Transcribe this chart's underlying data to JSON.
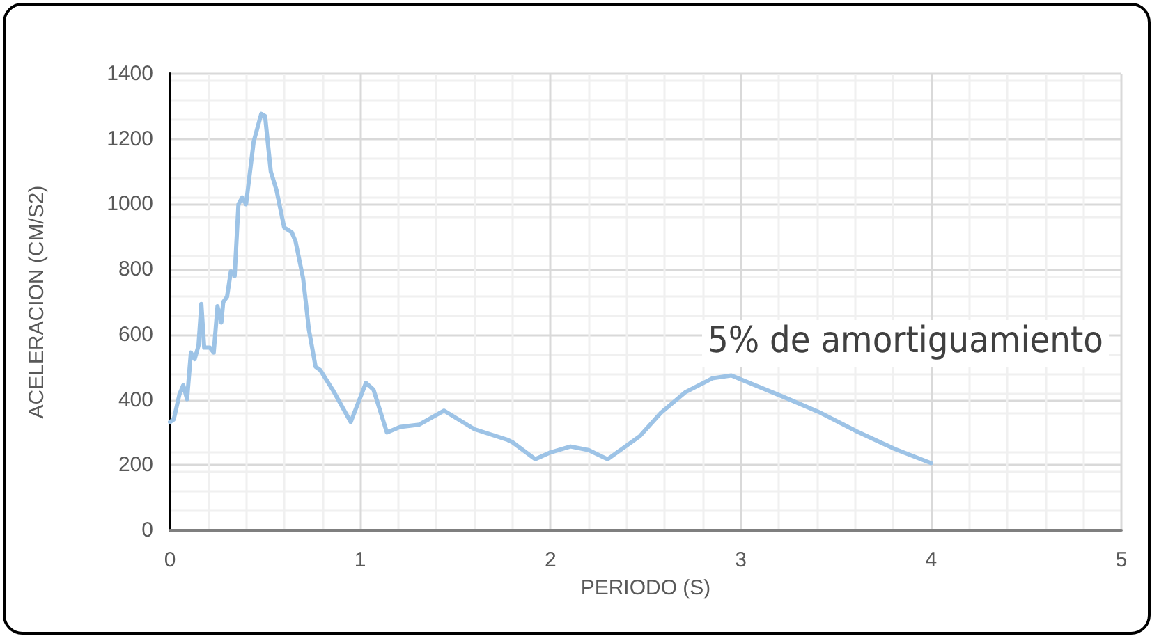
{
  "chart_data": {
    "type": "line",
    "xlabel": "PERIODO (S)",
    "ylabel": "ACELERACION (CM/S2)",
    "annotations": [
      "5% de amortiguamiento"
    ],
    "series": [
      {
        "color": "#9dc3e6",
        "x": [
          0,
          0.02,
          0.05,
          0.07,
          0.09,
          0.11,
          0.13,
          0.15,
          0.165,
          0.18,
          0.21,
          0.23,
          0.25,
          0.27,
          0.28,
          0.3,
          0.32,
          0.34,
          0.36,
          0.38,
          0.4,
          0.44,
          0.48,
          0.5,
          0.53,
          0.56,
          0.6,
          0.64,
          0.66,
          0.7,
          0.73,
          0.765,
          0.79,
          0.855,
          0.95,
          1.03,
          1.07,
          1.14,
          1.21,
          1.31,
          1.44,
          1.6,
          1.775,
          1.8,
          1.92,
          2,
          2.105,
          2.2,
          2.3,
          2.47,
          2.58,
          2.71,
          2.85,
          2.95,
          3.22,
          3.42,
          3.61,
          3.81,
          4
        ],
        "values": [
          332,
          340,
          417,
          445,
          402,
          545,
          525,
          566,
          694,
          560,
          560,
          545,
          687,
          637,
          700,
          716,
          794,
          780,
          1000,
          1021,
          1000,
          1192,
          1277,
          1270,
          1100,
          1043,
          929,
          914,
          886,
          772,
          616,
          502,
          491,
          431,
          332,
          452,
          431,
          300,
          317,
          324,
          367,
          310,
          277,
          270,
          218,
          239,
          257,
          246,
          218,
          289,
          360,
          424,
          466,
          475,
          410,
          360,
          303,
          249,
          206
        ]
      }
    ],
    "xlim": [
      0,
      5
    ],
    "xticks": [
      0,
      1,
      2,
      3,
      4,
      5
    ],
    "ylim": [
      0,
      1400
    ],
    "yticks": [
      0,
      200,
      400,
      600,
      800,
      1000,
      1200,
      1400
    ],
    "grid": true,
    "marker": "none",
    "line_style": "solid"
  }
}
